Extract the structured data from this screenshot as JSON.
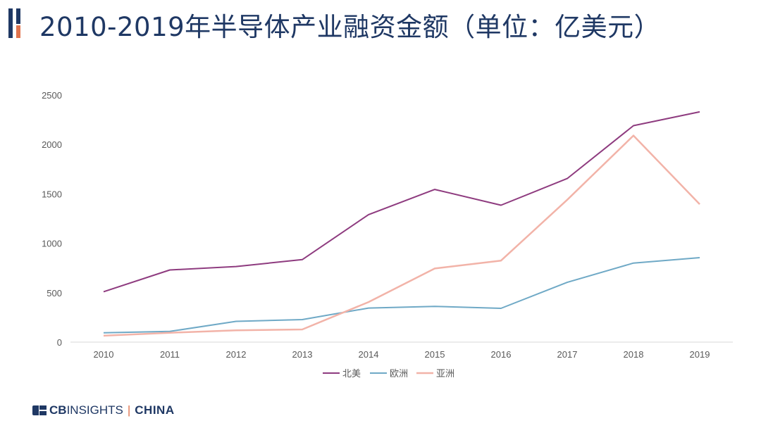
{
  "page": {
    "title": "2010-2019年半导体产业融资金额（单位：亿美元）"
  },
  "brand": {
    "part1": "CB",
    "part2": "INSIGHTS",
    "separator": "|",
    "part3": "CHINA"
  },
  "colors": {
    "title": "#1f3864",
    "accent": "#e0734d",
    "north_america": "#8e3b7f",
    "europe": "#6fa9c6",
    "asia": "#f2b3a8"
  },
  "chart_data": {
    "type": "line",
    "title": "",
    "xlabel": "",
    "ylabel": "",
    "x": [
      "2010",
      "2011",
      "2012",
      "2013",
      "2014",
      "2015",
      "2016",
      "2017",
      "2018",
      "2019"
    ],
    "ylim": [
      0,
      2500
    ],
    "yticks": [
      "0",
      "500",
      "1000",
      "1500",
      "2000",
      "2500"
    ],
    "grid": false,
    "legend_position": "bottom",
    "series": [
      {
        "name": "北美",
        "values": [
          510,
          730,
          765,
          835,
          1290,
          1545,
          1385,
          1655,
          2190,
          2330
        ]
      },
      {
        "name": "欧洲",
        "values": [
          95,
          108,
          210,
          228,
          345,
          362,
          342,
          605,
          800,
          855
        ]
      },
      {
        "name": "亚洲",
        "values": [
          65,
          95,
          120,
          128,
          405,
          745,
          825,
          1440,
          2090,
          1395
        ]
      }
    ]
  }
}
